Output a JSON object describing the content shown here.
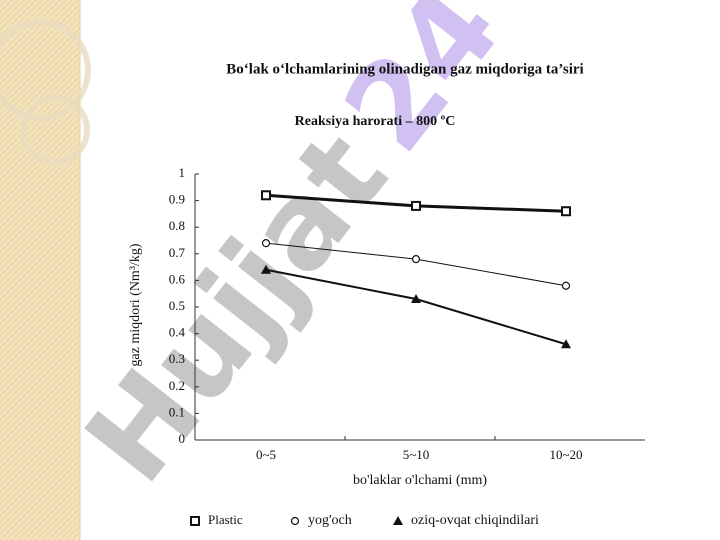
{
  "chart_data": {
    "type": "line",
    "title": "Bo‘lak o‘lchamlarining olinadigan gaz miqdoriga ta’siri",
    "subtitle": "Reaksiya harorati – 800 ºC",
    "x_label": "bo'laklar o'lchami (mm)",
    "y_label": "gaz miqdori (Nm³/kg)",
    "categories": [
      "0~5",
      "5~10",
      "10~20"
    ],
    "series": [
      {
        "name": "Plastic",
        "color": "#111111",
        "marker": "square",
        "values": [
          0.92,
          0.88,
          0.86
        ]
      },
      {
        "name": "yog'och",
        "color": "#111111",
        "marker": "circle",
        "values": [
          0.74,
          0.68,
          0.58
        ]
      },
      {
        "name": "oziq-ovqat chiqindilari",
        "color": "#111111",
        "marker": "triangle",
        "values": [
          0.64,
          0.53,
          0.36
        ]
      }
    ],
    "ylim": [
      0,
      1
    ],
    "yticks": [
      0,
      0.1,
      0.2,
      0.3,
      0.4,
      0.5,
      0.6,
      0.7,
      0.8,
      0.9,
      1
    ],
    "legend": "bottom",
    "watermark": [
      "Hujjat",
      "24"
    ]
  }
}
